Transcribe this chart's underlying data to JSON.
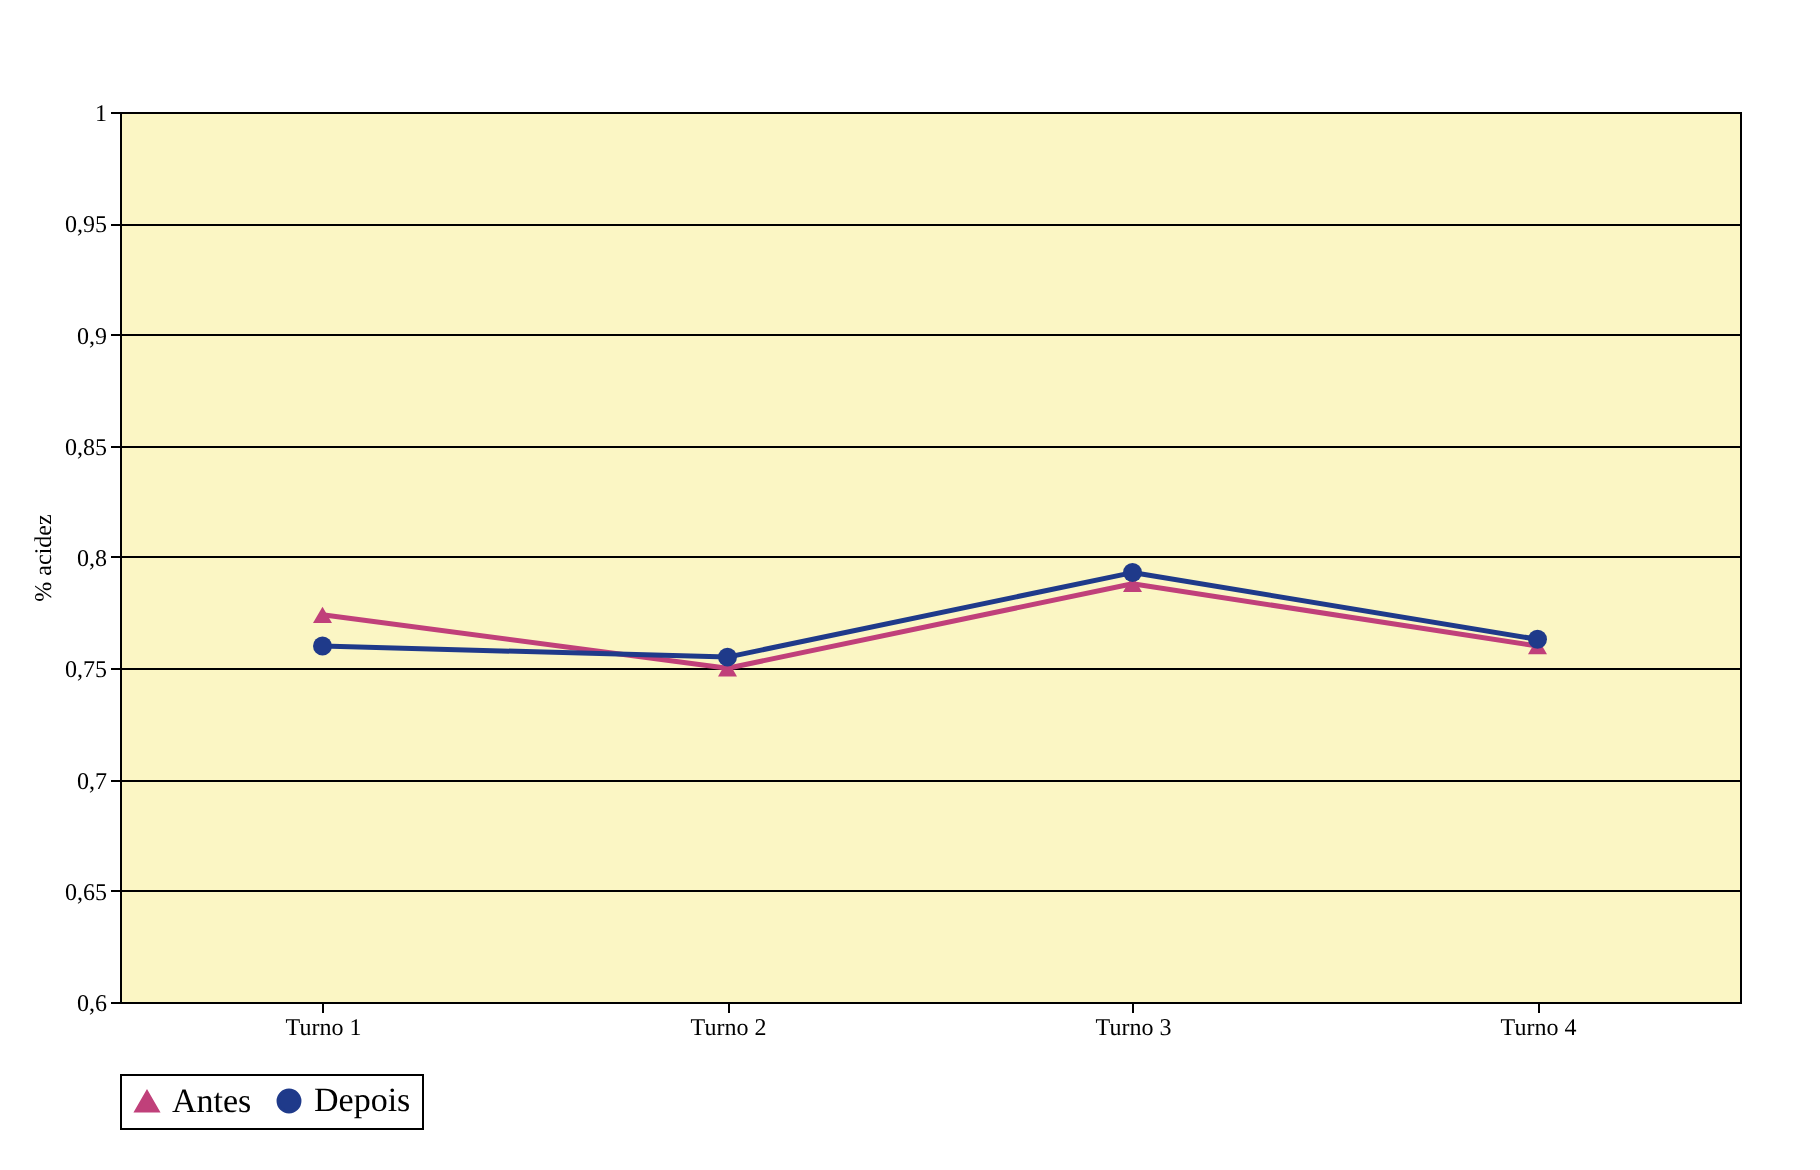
{
  "chart_data": {
    "type": "line",
    "ylabel": "% acidez",
    "categories": [
      "Turno 1",
      "Turno 2",
      "Turno 3",
      "Turno 4"
    ],
    "series": [
      {
        "name": "Antes",
        "color": "#c0407a",
        "marker": "triangle",
        "values": [
          0.774,
          0.75,
          0.788,
          0.76
        ]
      },
      {
        "name": "Depois",
        "color": "#1f3a8a",
        "marker": "circle",
        "values": [
          0.76,
          0.755,
          0.793,
          0.763
        ]
      }
    ],
    "ylim": [
      0.6,
      1
    ],
    "yticks": [
      {
        "value": 0.6,
        "label": "0,6"
      },
      {
        "value": 0.65,
        "label": "0,65"
      },
      {
        "value": 0.7,
        "label": "0,7"
      },
      {
        "value": 0.75,
        "label": "0,75"
      },
      {
        "value": 0.8,
        "label": "0,8"
      },
      {
        "value": 0.85,
        "label": "0,85"
      },
      {
        "value": 0.9,
        "label": "0,9"
      },
      {
        "value": 0.95,
        "label": "0,95"
      },
      1
    ],
    "grid": "y",
    "legend": "bottom"
  }
}
